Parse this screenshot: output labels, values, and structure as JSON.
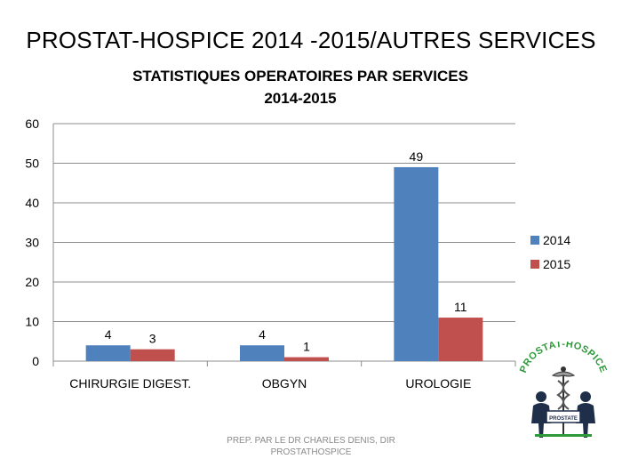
{
  "slide": {
    "title": "PROSTAT-HOSPICE 2014 -2015/AUTRES SERVICES",
    "footer": "PREP. PAR LE DR CHARLES DENIS, DIR PROSTATHOSPICE"
  },
  "logo": {
    "arc_text": "PROSTAT-HOSPICE",
    "sign_text": "PROSTATE"
  },
  "chart_data": {
    "type": "bar",
    "title": "STATISTIQUES OPERATOIRES  PAR SERVICES",
    "subtitle": "2014-2015",
    "categories": [
      "CHIRURGIE DIGEST.",
      "OBGYN",
      "UROLOGIE"
    ],
    "series": [
      {
        "name": "2014",
        "values": [
          4,
          4,
          49
        ],
        "color": "#4F81BD"
      },
      {
        "name": "2015",
        "values": [
          3,
          1,
          11
        ],
        "color": "#C0504D"
      }
    ],
    "ylim": [
      0,
      60
    ],
    "yticks": [
      0,
      10,
      20,
      30,
      40,
      50,
      60
    ],
    "grid": true,
    "legend": "right",
    "data_labels": true
  }
}
